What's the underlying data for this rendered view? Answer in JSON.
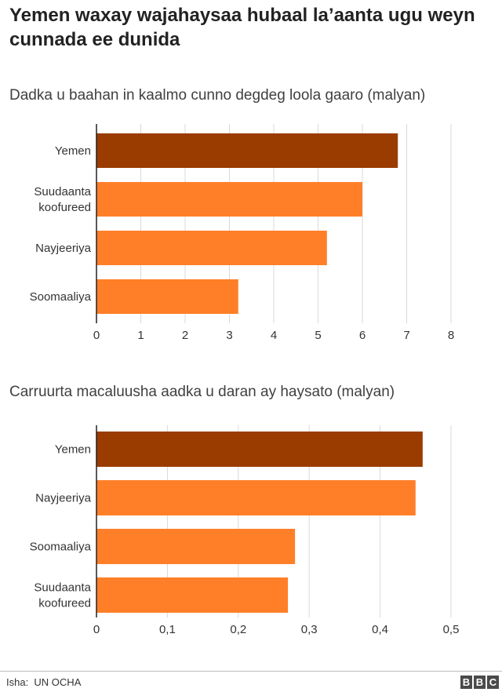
{
  "title": "Yemen waxay wajahaysaa hubaal la’aanta ugu weyn cunnada ee dunida",
  "source_label": "Isha:",
  "source_value": "UN OCHA",
  "logo_letters": [
    "B",
    "B",
    "C"
  ],
  "colors": {
    "highlight": "#9a3c00",
    "bar": "#ff7f28",
    "grid": "#d9d9d9",
    "axis": "#222222"
  },
  "chart_data": [
    {
      "type": "bar",
      "orientation": "horizontal",
      "title": "Dadka u baahan in kaalmo cunno degdeg loola gaaro (malyan)",
      "categories": [
        [
          "Yemen"
        ],
        [
          "Suudaanta",
          "koofureed"
        ],
        [
          "Nayjeeriya"
        ],
        [
          "Soomaaliya"
        ]
      ],
      "values": [
        6.8,
        6.0,
        5.2,
        3.2
      ],
      "highlight_index": 0,
      "xlim": [
        0,
        8
      ],
      "ticks": [
        0,
        1,
        2,
        3,
        4,
        5,
        6,
        7,
        8
      ],
      "tick_labels": [
        "0",
        "1",
        "2",
        "3",
        "4",
        "5",
        "6",
        "7",
        "8"
      ],
      "grid": true,
      "legend": "none"
    },
    {
      "type": "bar",
      "orientation": "horizontal",
      "title": "Carruurta macaluusha aadka u daran ay haysato (malyan)",
      "categories": [
        [
          "Yemen"
        ],
        [
          "Nayjeeriya"
        ],
        [
          "Soomaaliya"
        ],
        [
          "Suudaanta",
          "koofureed"
        ]
      ],
      "values": [
        0.46,
        0.45,
        0.28,
        0.27
      ],
      "highlight_index": 0,
      "xlim": [
        0,
        0.5
      ],
      "ticks": [
        0,
        0.1,
        0.2,
        0.3,
        0.4,
        0.5
      ],
      "tick_labels": [
        "0",
        "0,1",
        "0,2",
        "0,3",
        "0,4",
        "0,5"
      ],
      "grid": true,
      "legend": "none"
    }
  ]
}
